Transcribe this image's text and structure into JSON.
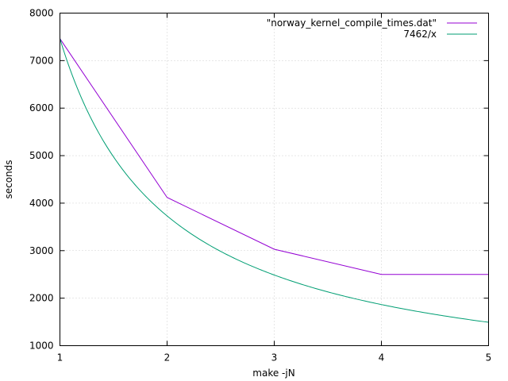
{
  "chart_data": {
    "type": "line",
    "xlabel": "make -jN",
    "ylabel": "seconds",
    "xlim": [
      1,
      5
    ],
    "ylim": [
      1000,
      8000
    ],
    "xticks": [
      1,
      2,
      3,
      4,
      5
    ],
    "yticks": [
      1000,
      2000,
      3000,
      4000,
      5000,
      6000,
      7000,
      8000
    ],
    "grid": true,
    "legend_position": "top-right",
    "series": [
      {
        "name": "\"norway_kernel_compile_times.dat\"",
        "color": "#9400d3",
        "x": [
          1,
          2,
          3,
          4,
          5
        ],
        "y": [
          7462,
          4120,
          3030,
          2500,
          2500
        ]
      },
      {
        "name": "7462/x",
        "color": "#009e73",
        "function": "7462/x"
      }
    ]
  }
}
